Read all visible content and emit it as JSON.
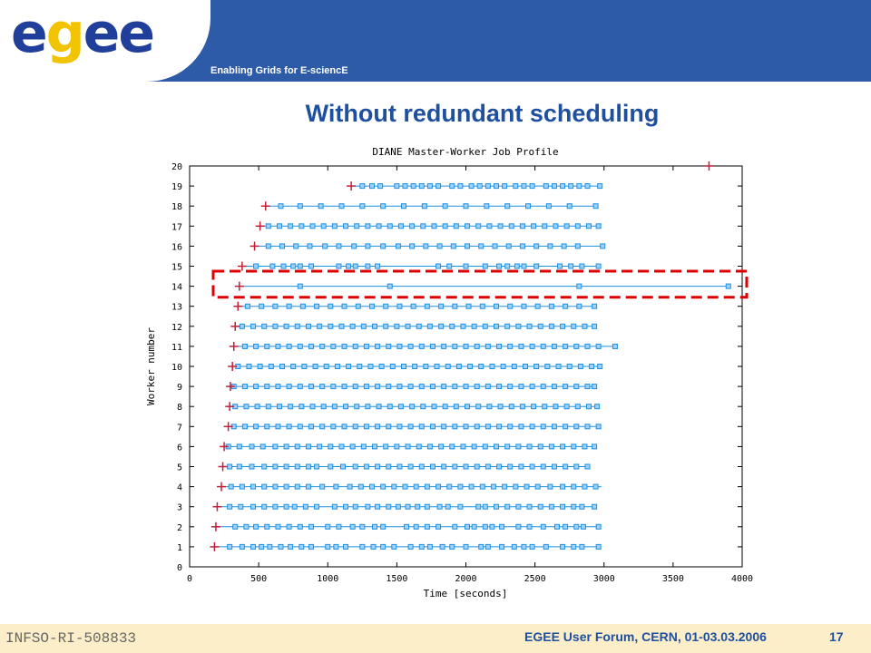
{
  "header": {
    "logo_text": "egee",
    "tagline": "Enabling Grids for E-sciencE",
    "colors": {
      "bar": "#2e5ba8",
      "logo_blue": "#1f3f9a",
      "logo_yellow": "#f2c300"
    }
  },
  "slide": {
    "title": "Without redundant scheduling"
  },
  "footer": {
    "left": "INFSO-RI-508833",
    "center": "EGEE User Forum, CERN, 01-03.03.2006",
    "page": "17"
  },
  "chart_data": {
    "type": "scatter",
    "title": "DIANE Master-Worker Job Profile",
    "xlabel": "Time [seconds]",
    "ylabel": "Worker number",
    "xlim": [
      0,
      4000
    ],
    "ylim": [
      0,
      20
    ],
    "xticks": [
      0,
      500,
      1000,
      1500,
      2000,
      2500,
      3000,
      3500,
      4000
    ],
    "yticks": [
      0,
      1,
      2,
      3,
      4,
      5,
      6,
      7,
      8,
      9,
      10,
      11,
      12,
      13,
      14,
      15,
      16,
      17,
      18,
      19,
      20
    ],
    "grid": false,
    "colors": {
      "task": "#1e90e0",
      "start_marker": "#c0203a",
      "highlight": "#dd0000"
    },
    "highlight_worker": 14,
    "workers": [
      {
        "worker": 1,
        "start": 180,
        "end": 2960
      },
      {
        "worker": 2,
        "start": 190,
        "end": 2960
      },
      {
        "worker": 3,
        "start": 200,
        "end": 2930
      },
      {
        "worker": 4,
        "start": 230,
        "end": 2980
      },
      {
        "worker": 5,
        "start": 240,
        "end": 2900
      },
      {
        "worker": 6,
        "start": 250,
        "end": 2930
      },
      {
        "worker": 7,
        "start": 280,
        "end": 2960
      },
      {
        "worker": 8,
        "start": 290,
        "end": 2950
      },
      {
        "worker": 9,
        "start": 295,
        "end": 2930
      },
      {
        "worker": 10,
        "start": 310,
        "end": 2970
      },
      {
        "worker": 11,
        "start": 320,
        "end": 3080
      },
      {
        "worker": 12,
        "start": 330,
        "end": 2930
      },
      {
        "worker": 13,
        "start": 350,
        "end": 2930
      },
      {
        "worker": 14,
        "start": 360,
        "end": 3900
      },
      {
        "worker": 15,
        "start": 380,
        "end": 2960
      },
      {
        "worker": 16,
        "start": 470,
        "end": 2990
      },
      {
        "worker": 17,
        "start": 510,
        "end": 2960
      },
      {
        "worker": 18,
        "start": 550,
        "end": 2940
      },
      {
        "worker": 19,
        "start": 1170,
        "end": 2970
      },
      {
        "worker": 20,
        "start": 3760,
        "end": 3760
      }
    ],
    "task_times": {
      "1": [
        290,
        380,
        460,
        520,
        580,
        660,
        730,
        810,
        880,
        1000,
        1060,
        1130,
        1250,
        1330,
        1400,
        1480,
        1600,
        1680,
        1740,
        1830,
        1900,
        2000,
        2110,
        2160,
        2260,
        2350,
        2420,
        2480,
        2580,
        2700,
        2780,
        2840,
        2960
      ],
      "2": [
        330,
        410,
        480,
        560,
        640,
        720,
        800,
        880,
        1000,
        1080,
        1180,
        1250,
        1340,
        1400,
        1570,
        1640,
        1720,
        1800,
        1920,
        2010,
        2060,
        2140,
        2190,
        2260,
        2380,
        2460,
        2560,
        2660,
        2720,
        2800,
        2850,
        2960
      ],
      "3": [
        290,
        370,
        460,
        540,
        620,
        700,
        760,
        840,
        920,
        1050,
        1130,
        1200,
        1290,
        1360,
        1440,
        1510,
        1580,
        1650,
        1720,
        1810,
        1870,
        1960,
        2090,
        2140,
        2220,
        2300,
        2380,
        2460,
        2540,
        2620,
        2700,
        2780,
        2840,
        2930
      ],
      "4": [
        300,
        380,
        460,
        540,
        620,
        700,
        780,
        860,
        960,
        1060,
        1160,
        1240,
        1320,
        1400,
        1480,
        1560,
        1640,
        1720,
        1800,
        1880,
        1960,
        2040,
        2120,
        2200,
        2280,
        2360,
        2440,
        2520,
        2610,
        2700,
        2780,
        2860,
        2940
      ],
      "5": [
        290,
        360,
        450,
        540,
        620,
        700,
        780,
        860,
        920,
        1020,
        1110,
        1200,
        1280,
        1360,
        1440,
        1520,
        1600,
        1680,
        1760,
        1840,
        1920,
        2000,
        2080,
        2160,
        2240,
        2320,
        2400,
        2480,
        2560,
        2640,
        2720,
        2800,
        2880
      ],
      "6": [
        280,
        360,
        450,
        530,
        620,
        700,
        780,
        860,
        940,
        1020,
        1100,
        1180,
        1260,
        1340,
        1420,
        1500,
        1580,
        1660,
        1740,
        1820,
        1900,
        1980,
        2060,
        2140,
        2220,
        2300,
        2380,
        2460,
        2540,
        2620,
        2700,
        2780,
        2860,
        2930
      ],
      "7": [
        320,
        400,
        480,
        560,
        640,
        720,
        800,
        880,
        960,
        1040,
        1120,
        1200,
        1280,
        1360,
        1440,
        1520,
        1600,
        1680,
        1760,
        1840,
        1920,
        2000,
        2080,
        2160,
        2240,
        2320,
        2400,
        2480,
        2560,
        2640,
        2720,
        2800,
        2880,
        2960
      ],
      "8": [
        330,
        410,
        490,
        570,
        650,
        730,
        810,
        890,
        970,
        1050,
        1130,
        1210,
        1290,
        1370,
        1450,
        1530,
        1610,
        1690,
        1770,
        1850,
        1930,
        2010,
        2090,
        2170,
        2250,
        2330,
        2410,
        2490,
        2570,
        2650,
        2730,
        2810,
        2890,
        2950
      ],
      "9": [
        320,
        400,
        480,
        560,
        640,
        720,
        800,
        880,
        960,
        1040,
        1120,
        1200,
        1280,
        1360,
        1440,
        1520,
        1600,
        1680,
        1760,
        1840,
        1920,
        2000,
        2080,
        2160,
        2240,
        2320,
        2400,
        2480,
        2560,
        2640,
        2720,
        2800,
        2880,
        2930
      ],
      "10": [
        350,
        430,
        510,
        590,
        670,
        750,
        830,
        910,
        990,
        1070,
        1150,
        1230,
        1310,
        1390,
        1470,
        1550,
        1630,
        1710,
        1790,
        1870,
        1950,
        2030,
        2110,
        2190,
        2270,
        2350,
        2430,
        2510,
        2590,
        2670,
        2750,
        2830,
        2910,
        2970
      ],
      "11": [
        400,
        480,
        560,
        640,
        720,
        800,
        880,
        960,
        1040,
        1120,
        1200,
        1280,
        1360,
        1440,
        1520,
        1600,
        1680,
        1760,
        1840,
        1920,
        2000,
        2080,
        2160,
        2240,
        2320,
        2400,
        2480,
        2560,
        2640,
        2720,
        2800,
        2880,
        2960,
        3080
      ],
      "12": [
        380,
        460,
        540,
        620,
        700,
        780,
        860,
        940,
        1020,
        1100,
        1180,
        1260,
        1340,
        1420,
        1500,
        1580,
        1660,
        1740,
        1820,
        1900,
        1980,
        2060,
        2140,
        2220,
        2300,
        2380,
        2460,
        2540,
        2620,
        2700,
        2780,
        2860,
        2930
      ],
      "13": [
        420,
        520,
        620,
        720,
        820,
        920,
        1020,
        1120,
        1220,
        1320,
        1420,
        1520,
        1620,
        1720,
        1820,
        1920,
        2020,
        2120,
        2220,
        2320,
        2420,
        2520,
        2620,
        2720,
        2820,
        2930
      ],
      "14": [
        800,
        1450,
        2820,
        3900
      ],
      "15": [
        480,
        600,
        680,
        750,
        800,
        880,
        1080,
        1150,
        1200,
        1290,
        1360,
        1800,
        1880,
        2000,
        2140,
        2240,
        2300,
        2370,
        2420,
        2510,
        2680,
        2760,
        2840,
        2960
      ],
      "16": [
        570,
        670,
        770,
        870,
        980,
        1080,
        1190,
        1290,
        1400,
        1510,
        1610,
        1710,
        1810,
        1910,
        2010,
        2110,
        2210,
        2310,
        2410,
        2510,
        2610,
        2710,
        2810,
        2990
      ],
      "17": [
        570,
        650,
        730,
        810,
        890,
        970,
        1050,
        1130,
        1210,
        1290,
        1370,
        1450,
        1530,
        1610,
        1690,
        1770,
        1850,
        1930,
        2010,
        2090,
        2170,
        2250,
        2330,
        2410,
        2490,
        2570,
        2650,
        2730,
        2810,
        2890,
        2960
      ],
      "18": [
        660,
        800,
        950,
        1100,
        1250,
        1400,
        1550,
        1700,
        1850,
        2000,
        2150,
        2300,
        2450,
        2600,
        2750,
        2940
      ],
      "19": [
        1250,
        1320,
        1380,
        1500,
        1560,
        1620,
        1680,
        1740,
        1800,
        1900,
        1960,
        2040,
        2100,
        2160,
        2220,
        2280,
        2360,
        2420,
        2480,
        2580,
        2640,
        2700,
        2760,
        2820,
        2880,
        2970
      ]
    }
  }
}
